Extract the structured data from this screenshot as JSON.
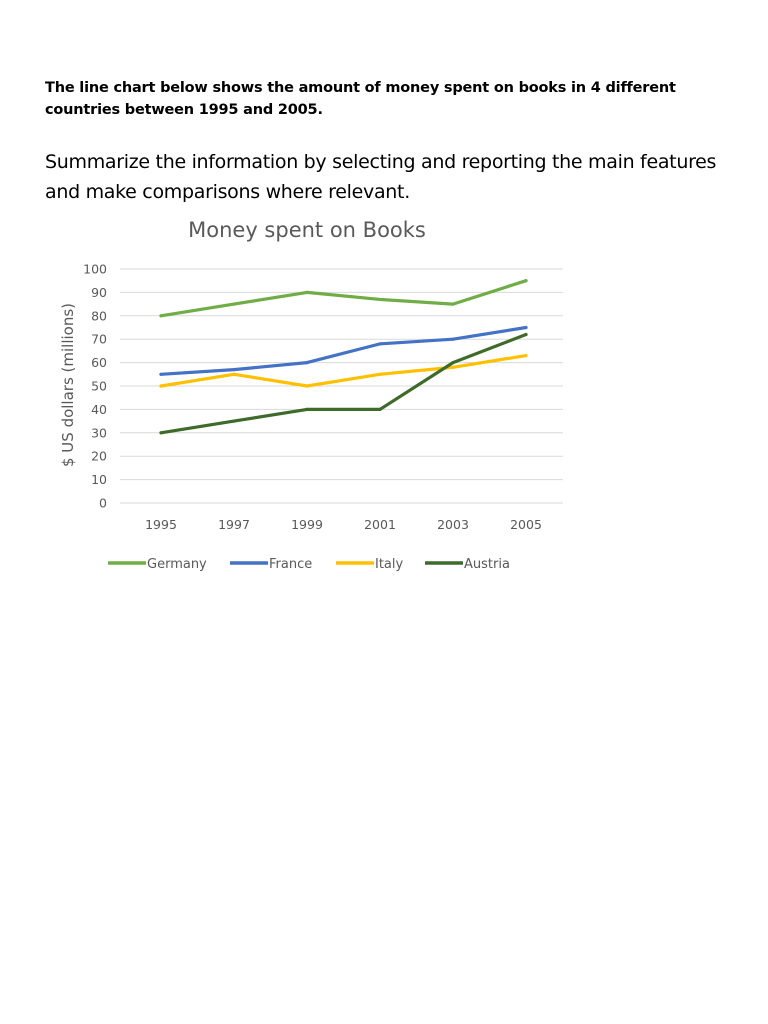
{
  "document": {
    "heading": "The line chart below shows the amount of money spent on books in 4 different countries between 1995 and 2005.",
    "instruction": "Summarize the information by selecting and reporting the main features and make comparisons where relevant."
  },
  "chart_data": {
    "type": "line",
    "title": "Money spent on Books",
    "xlabel": "",
    "ylabel": "$ US dollars (millions)",
    "x": [
      "1995",
      "1997",
      "1999",
      "2001",
      "2003",
      "2005"
    ],
    "ylim": [
      0,
      100
    ],
    "yticks": [
      0,
      10,
      20,
      30,
      40,
      50,
      60,
      70,
      80,
      90,
      100
    ],
    "grid": true,
    "legend_position": "bottom",
    "series": [
      {
        "name": "Germany",
        "color": "#70ad47",
        "values": [
          80,
          85,
          90,
          87,
          85,
          95
        ]
      },
      {
        "name": "France",
        "color": "#4472c4",
        "values": [
          55,
          57,
          60,
          68,
          70,
          75
        ]
      },
      {
        "name": "Italy",
        "color": "#ffc000",
        "values": [
          50,
          55,
          50,
          55,
          58,
          63
        ]
      },
      {
        "name": "Austria",
        "color": "#3e6b2a",
        "values": [
          30,
          35,
          40,
          40,
          60,
          72
        ]
      }
    ]
  }
}
